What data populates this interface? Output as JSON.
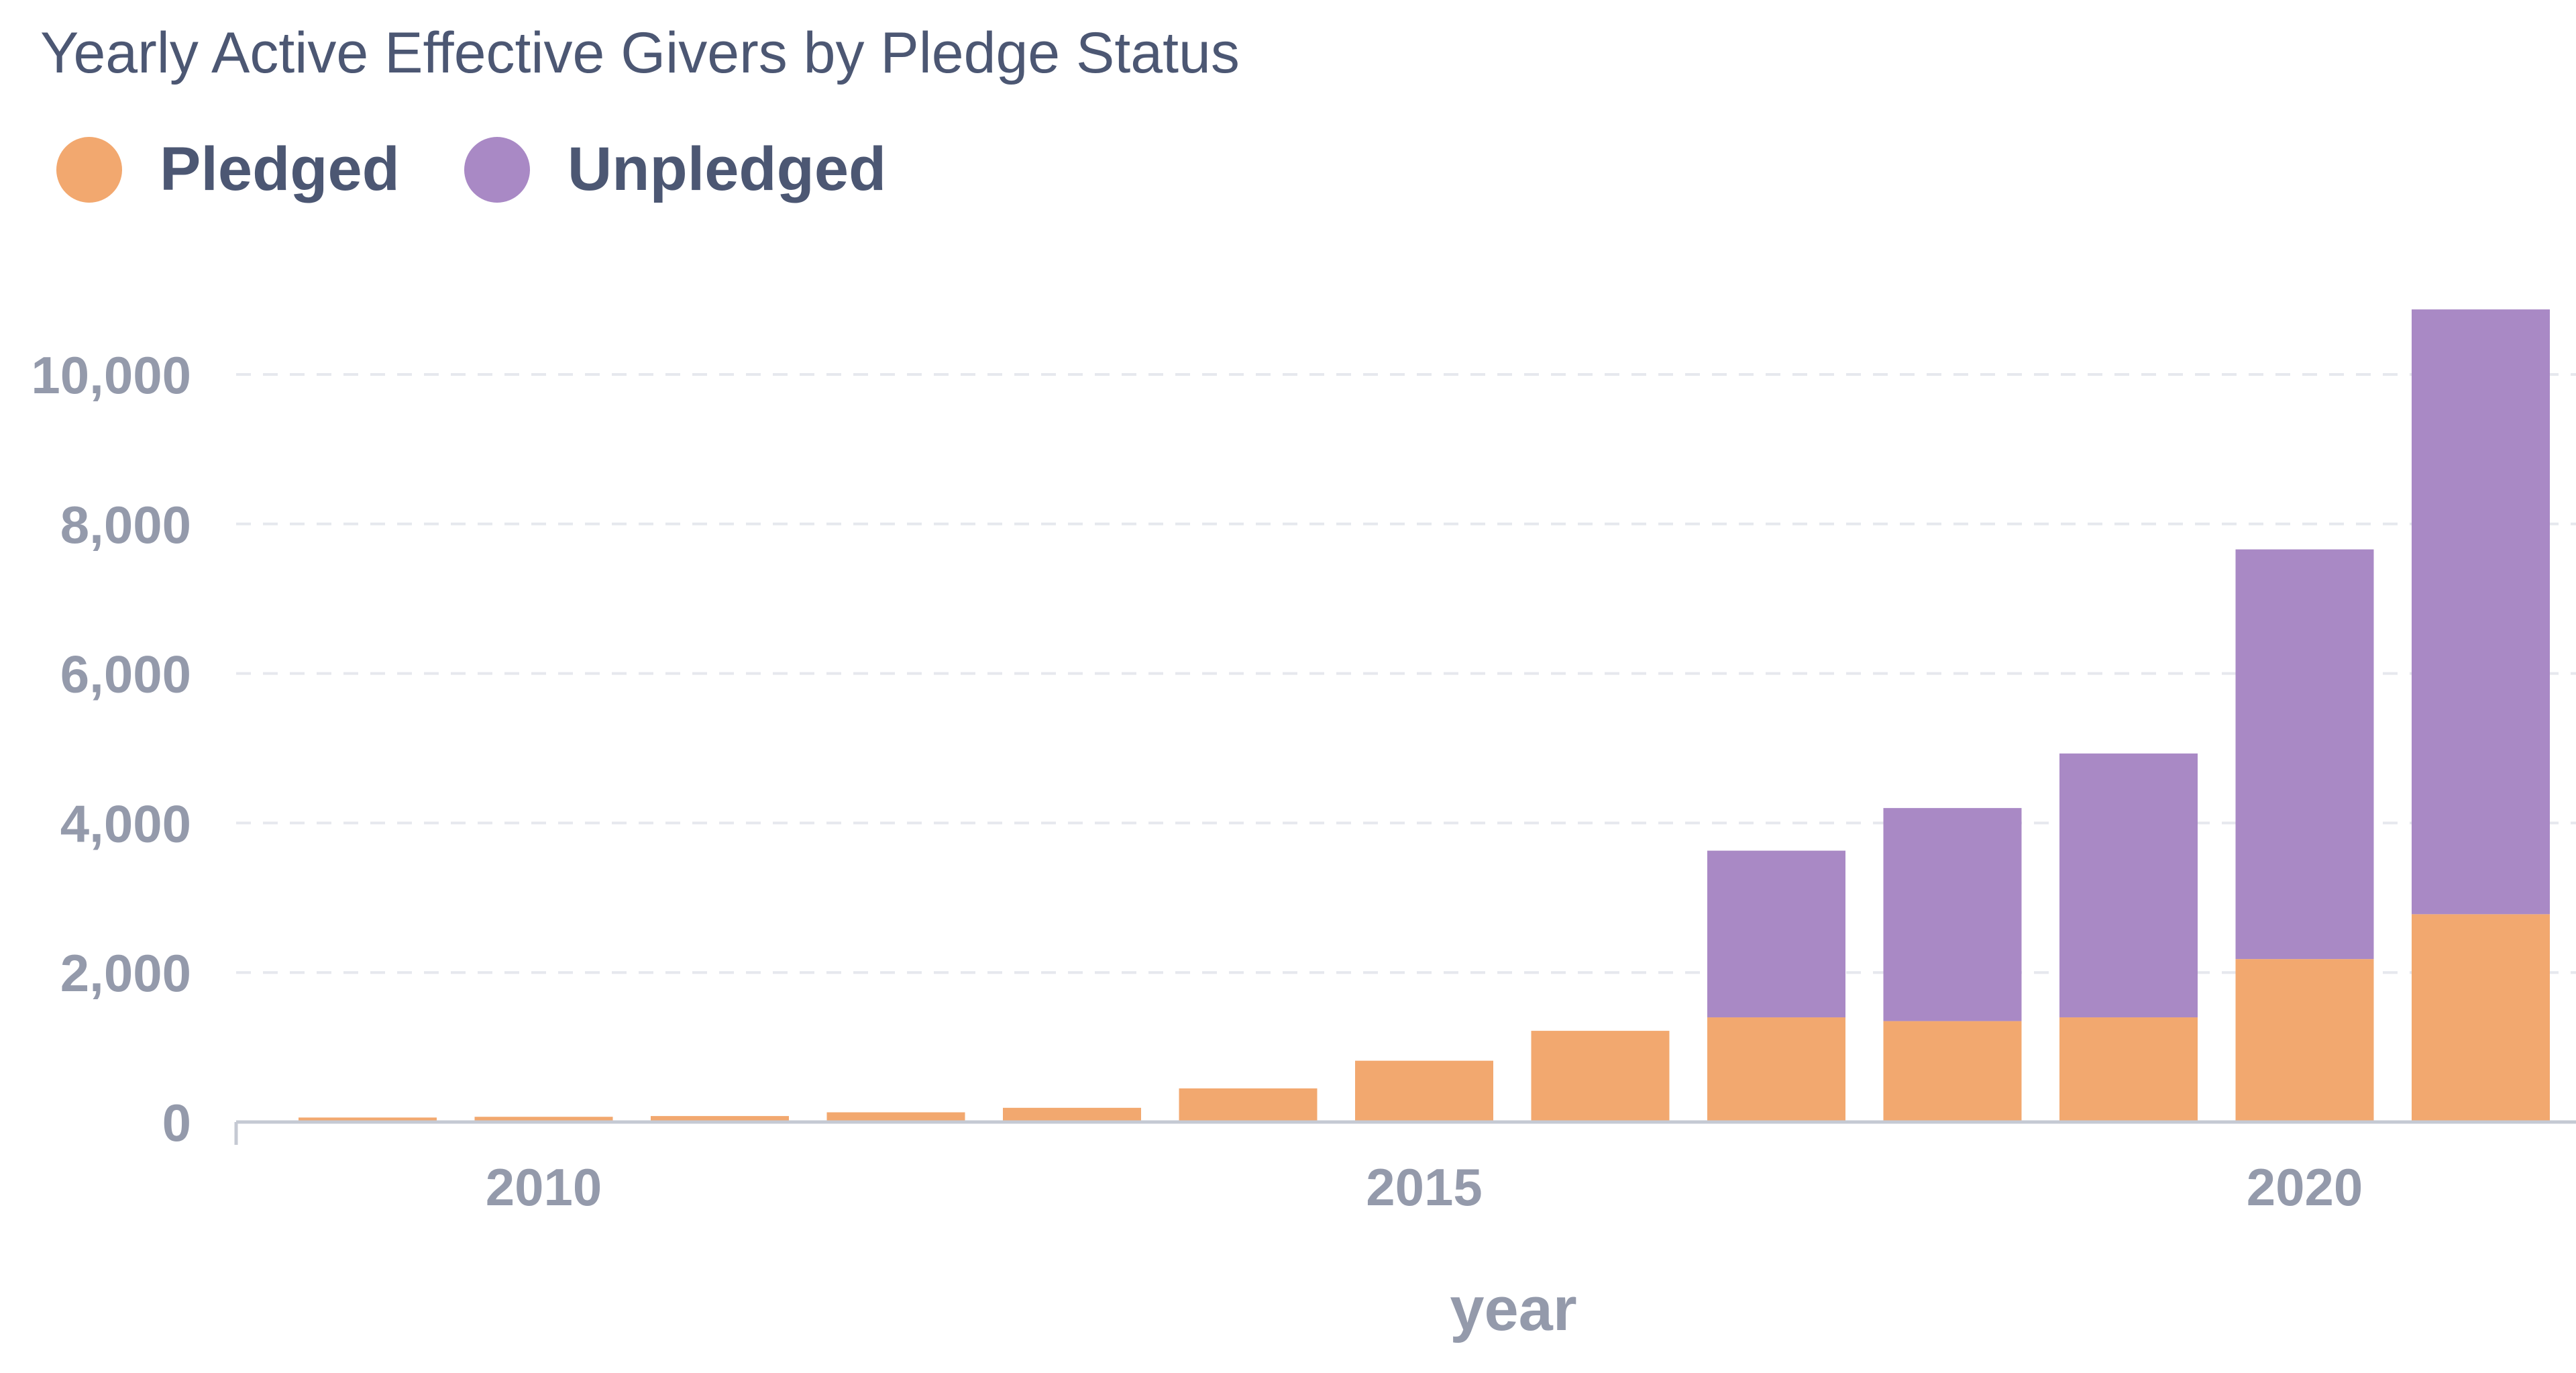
{
  "colors": {
    "pledged": "#f2a86f",
    "unpledged": "#a989c5",
    "text": "#4c5773",
    "axis": "#949aab",
    "grid": "#e6e8ee"
  },
  "chart_data": {
    "type": "bar",
    "stacked": true,
    "title": "Yearly Active Effective Givers by Pledge Status",
    "xlabel": "year",
    "ylabel": "",
    "categories": [
      2009,
      2010,
      2011,
      2012,
      2013,
      2014,
      2015,
      2016,
      2017,
      2018,
      2019,
      2020,
      2021
    ],
    "series": [
      {
        "name": "Pledged",
        "values": [
          60,
          70,
          80,
          130,
          190,
          450,
          820,
          1220,
          1400,
          1350,
          1400,
          2180,
          2780
        ]
      },
      {
        "name": "Unpledged",
        "values": [
          0,
          0,
          0,
          0,
          0,
          0,
          0,
          0,
          2230,
          2850,
          3530,
          5480,
          8090
        ]
      }
    ],
    "yticks": [
      0,
      2000,
      4000,
      6000,
      8000,
      10000
    ],
    "ytick_labels": [
      "0",
      "2,000",
      "4,000",
      "6,000",
      "8,000",
      "10,000"
    ],
    "xticks": [
      2010,
      2015,
      2020
    ],
    "xtick_labels": [
      "2010",
      "2015",
      "2020"
    ],
    "ylim": [
      0,
      11000
    ],
    "legend_position": "top-left",
    "grid": true
  }
}
